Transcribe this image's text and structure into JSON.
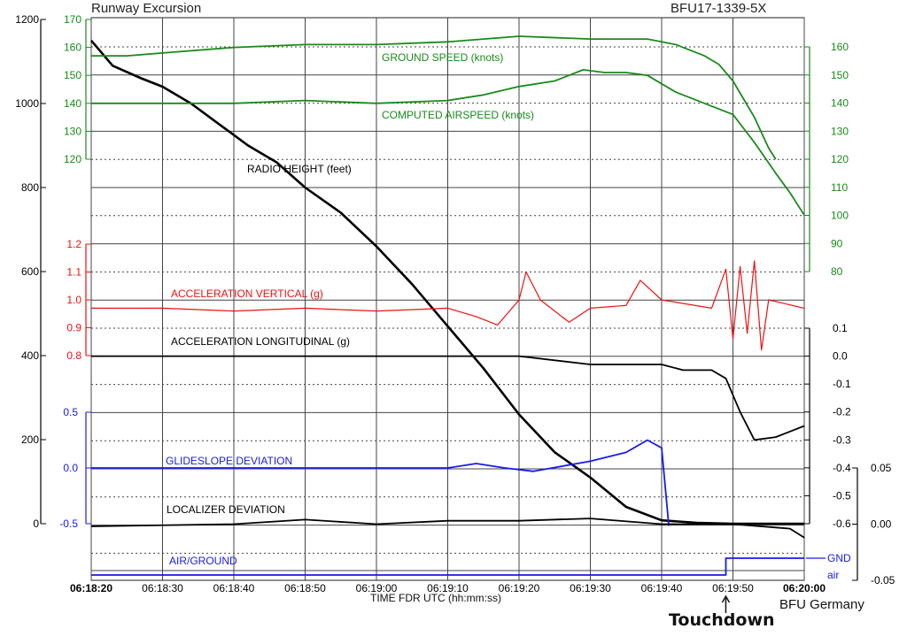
{
  "header": {
    "title": "Runway Excursion",
    "report_id": "BFU17-1339-5X"
  },
  "footer": {
    "x_axis_title": "TIME FDR UTC (hh:mm:ss)",
    "credit": "BFU Germany",
    "annotation": "Touchdown"
  },
  "colors": {
    "black": "#000000",
    "green": "#1a8a1a",
    "red": "#ee1111",
    "blue": "#1a1aee",
    "grid": "#444444"
  },
  "chart_data": {
    "type": "line",
    "x_ticks": [
      "06:18:20",
      "06:18:30",
      "06:18:40",
      "06:18:50",
      "06:19:00",
      "06:19:10",
      "06:19:20",
      "06:19:30",
      "06:19:40",
      "06:19:50",
      "06:20:00"
    ],
    "xlim": [
      "06:18:20",
      "06:20:00"
    ],
    "touchdown_time": "06:19:49",
    "axes": {
      "radio_height": {
        "ticks": [
          "1200",
          "1000",
          "800",
          "600",
          "400",
          "200",
          "0"
        ],
        "ylim": [
          0,
          1200
        ]
      },
      "speed": {
        "ticks": [
          "170",
          "160",
          "150",
          "140",
          "130",
          "120"
        ],
        "ylim": [
          120,
          170
        ]
      },
      "speed_right": {
        "ticks": [
          "160",
          "150",
          "140",
          "130",
          "120",
          "110",
          "100",
          "90",
          "80"
        ],
        "ylim": [
          80,
          160
        ]
      },
      "acc_vertical": {
        "ticks": [
          "1.2",
          "1.1",
          "1.0",
          "0.9",
          "0.8"
        ],
        "ylim": [
          0.8,
          1.2
        ]
      },
      "acc_longitudinal": {
        "ticks": [
          "0.1",
          "0.0",
          "-0.1",
          "-0.2",
          "-0.3",
          "-0.4",
          "-0.5",
          "-0.6"
        ],
        "ylim": [
          -0.6,
          0.1
        ]
      },
      "glideslope": {
        "ticks": [
          "0.5",
          "0.0",
          "-0.5"
        ],
        "ylim": [
          -0.5,
          0.5
        ]
      },
      "localizer": {
        "ticks": [
          "0.05",
          "0.00",
          "-0.05"
        ],
        "ylim": [
          -0.05,
          0.05
        ]
      },
      "air_ground": {
        "ticks": [
          "GND",
          "air"
        ]
      }
    },
    "series": [
      {
        "name": "RADIO HEIGHT (feet)",
        "axis": "radio_height",
        "color": "#000000",
        "points": [
          [
            "06:18:20",
            1150
          ],
          [
            "06:18:23",
            1090
          ],
          [
            "06:18:27",
            1060
          ],
          [
            "06:18:30",
            1040
          ],
          [
            "06:18:34",
            1000
          ],
          [
            "06:18:38",
            950
          ],
          [
            "06:18:42",
            900
          ],
          [
            "06:18:46",
            860
          ],
          [
            "06:18:50",
            800
          ],
          [
            "06:18:55",
            740
          ],
          [
            "06:19:00",
            660
          ],
          [
            "06:19:05",
            570
          ],
          [
            "06:19:10",
            470
          ],
          [
            "06:19:15",
            370
          ],
          [
            "06:19:20",
            260
          ],
          [
            "06:19:25",
            170
          ],
          [
            "06:19:30",
            110
          ],
          [
            "06:19:35",
            40
          ],
          [
            "06:19:40",
            8
          ],
          [
            "06:19:45",
            2
          ],
          [
            "06:19:50",
            0
          ],
          [
            "06:20:00",
            0
          ]
        ]
      },
      {
        "name": "GROUND SPEED (knots)",
        "axis": "speed",
        "color": "#1a8a1a",
        "points": [
          [
            "06:18:20",
            157
          ],
          [
            "06:18:25",
            157
          ],
          [
            "06:18:30",
            158
          ],
          [
            "06:18:40",
            160
          ],
          [
            "06:18:50",
            161
          ],
          [
            "06:19:00",
            161
          ],
          [
            "06:19:10",
            162
          ],
          [
            "06:19:20",
            164
          ],
          [
            "06:19:30",
            163
          ],
          [
            "06:19:38",
            163
          ],
          [
            "06:19:42",
            161
          ],
          [
            "06:19:46",
            157
          ],
          [
            "06:19:48",
            154
          ],
          [
            "06:19:50",
            148
          ],
          [
            "06:19:53",
            135
          ],
          [
            "06:19:55",
            124
          ],
          [
            "06:19:56",
            120
          ]
        ]
      },
      {
        "name": "COMPUTED AIRSPEED (knots)",
        "axis": "speed",
        "color": "#1a8a1a",
        "points": [
          [
            "06:18:20",
            140
          ],
          [
            "06:18:30",
            140
          ],
          [
            "06:18:40",
            140
          ],
          [
            "06:18:50",
            141
          ],
          [
            "06:19:00",
            140
          ],
          [
            "06:19:10",
            141
          ],
          [
            "06:19:15",
            143
          ],
          [
            "06:19:20",
            146
          ],
          [
            "06:19:25",
            148
          ],
          [
            "06:19:29",
            152
          ],
          [
            "06:19:32",
            151
          ],
          [
            "06:19:35",
            151
          ],
          [
            "06:19:38",
            150
          ],
          [
            "06:19:42",
            144
          ],
          [
            "06:19:46",
            140
          ],
          [
            "06:19:50",
            136
          ],
          [
            "06:19:53",
            126
          ],
          [
            "06:19:56",
            115
          ],
          [
            "06:19:58",
            108
          ],
          [
            "06:20:00",
            100
          ]
        ]
      },
      {
        "name": "ACCELERATION VERTICAL (g)",
        "axis": "acc_vertical",
        "color": "#ee1111",
        "points": [
          [
            "06:18:20",
            0.97
          ],
          [
            "06:18:30",
            0.97
          ],
          [
            "06:18:40",
            0.96
          ],
          [
            "06:18:50",
            0.97
          ],
          [
            "06:19:00",
            0.96
          ],
          [
            "06:19:10",
            0.97
          ],
          [
            "06:19:14",
            0.94
          ],
          [
            "06:19:17",
            0.91
          ],
          [
            "06:19:20",
            1.0
          ],
          [
            "06:19:21",
            1.1
          ],
          [
            "06:19:23",
            1.0
          ],
          [
            "06:19:27",
            0.92
          ],
          [
            "06:19:30",
            0.97
          ],
          [
            "06:19:35",
            0.98
          ],
          [
            "06:19:37",
            1.07
          ],
          [
            "06:19:40",
            1.0
          ],
          [
            "06:19:47",
            0.97
          ],
          [
            "06:19:49",
            1.11
          ],
          [
            "06:19:50",
            0.86
          ],
          [
            "06:19:51",
            1.12
          ],
          [
            "06:19:52",
            0.88
          ],
          [
            "06:19:53",
            1.14
          ],
          [
            "06:19:54",
            0.82
          ],
          [
            "06:19:55",
            1.0
          ],
          [
            "06:20:00",
            0.97
          ]
        ]
      },
      {
        "name": "ACCELERATION LONGITUDINAL (g)",
        "axis": "acc_longitudinal",
        "color": "#000000",
        "points": [
          [
            "06:18:20",
            0.0
          ],
          [
            "06:18:30",
            0.0
          ],
          [
            "06:18:40",
            0.0
          ],
          [
            "06:18:50",
            0.0
          ],
          [
            "06:19:00",
            0.0
          ],
          [
            "06:19:10",
            0.0
          ],
          [
            "06:19:20",
            0.0
          ],
          [
            "06:19:30",
            -0.03
          ],
          [
            "06:19:40",
            -0.03
          ],
          [
            "06:19:43",
            -0.05
          ],
          [
            "06:19:47",
            -0.05
          ],
          [
            "06:19:49",
            -0.08
          ],
          [
            "06:19:51",
            -0.2
          ],
          [
            "06:19:53",
            -0.3
          ],
          [
            "06:19:56",
            -0.29
          ],
          [
            "06:20:00",
            -0.25
          ]
        ]
      },
      {
        "name": "GLIDESLOPE DEVIATION",
        "axis": "glideslope",
        "color": "#1a1aee",
        "points": [
          [
            "06:18:20",
            0.0
          ],
          [
            "06:18:40",
            0.0
          ],
          [
            "06:19:00",
            0.0
          ],
          [
            "06:19:10",
            0.0
          ],
          [
            "06:19:14",
            0.04
          ],
          [
            "06:19:18",
            0.0
          ],
          [
            "06:19:22",
            -0.03
          ],
          [
            "06:19:30",
            0.06
          ],
          [
            "06:19:35",
            0.14
          ],
          [
            "06:19:38",
            0.25
          ],
          [
            "06:19:40",
            0.18
          ],
          [
            "06:19:41",
            -0.52
          ]
        ]
      },
      {
        "name": "LOCALIZER DEVIATION",
        "axis": "localizer",
        "color": "#000000",
        "points": [
          [
            "06:18:20",
            -0.002
          ],
          [
            "06:18:40",
            0.0
          ],
          [
            "06:18:50",
            0.004
          ],
          [
            "06:19:00",
            0.0
          ],
          [
            "06:19:10",
            0.003
          ],
          [
            "06:19:20",
            0.003
          ],
          [
            "06:19:30",
            0.005
          ],
          [
            "06:19:40",
            0.0
          ],
          [
            "06:19:50",
            0.0
          ],
          [
            "06:19:58",
            -0.004
          ],
          [
            "06:20:00",
            -0.012
          ]
        ]
      },
      {
        "name": "AIR/GROUND",
        "axis": "air_ground",
        "color": "#1a1aee",
        "points": [
          [
            "06:18:20",
            "air"
          ],
          [
            "06:19:49",
            "air"
          ],
          [
            "06:19:49",
            "GND"
          ],
          [
            "06:20:00",
            "GND"
          ]
        ]
      }
    ]
  }
}
